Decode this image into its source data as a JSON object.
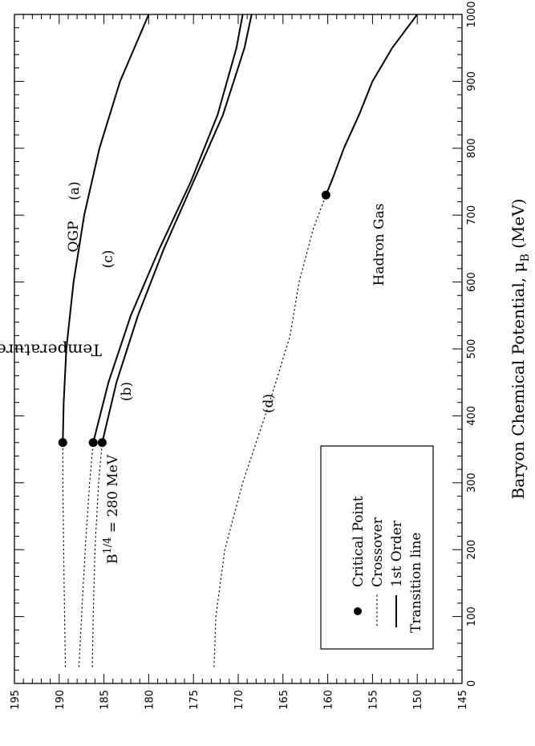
{
  "chart_data": {
    "type": "line",
    "xlabel": "Baryon Chemical Potential, μ",
    "xlabel_sub": "B",
    "xlabel_suffix": " (MeV)",
    "ylabel": "Temperature, T (MeV)",
    "xlim": [
      0,
      1000
    ],
    "ylim": [
      145,
      195
    ],
    "x_ticks": [
      0,
      100,
      200,
      300,
      400,
      500,
      600,
      700,
      800,
      900,
      1000
    ],
    "y_ticks": [
      145,
      150,
      155,
      160,
      165,
      170,
      175,
      180,
      185,
      190,
      195
    ],
    "orientation": "rotated 90° clockwise",
    "series": [
      {
        "id": "a",
        "label": "(a)",
        "color": "#000000",
        "crossover": [
          [
            25,
            189.3
          ],
          [
            100,
            189.4
          ],
          [
            200,
            189.5
          ],
          [
            300,
            189.6
          ],
          [
            360,
            189.6
          ]
        ],
        "first_order": [
          [
            360,
            189.6
          ],
          [
            420,
            189.5
          ],
          [
            500,
            189.2
          ],
          [
            600,
            188.4
          ],
          [
            700,
            187.2
          ],
          [
            800,
            185.5
          ],
          [
            900,
            183.2
          ],
          [
            1000,
            180.0
          ]
        ]
      },
      {
        "id": "b",
        "label": "(b)",
        "color": "#000000",
        "crossover": [
          [
            25,
            186.3
          ],
          [
            100,
            186.2
          ],
          [
            200,
            186.0
          ],
          [
            300,
            185.6
          ],
          [
            360,
            185.2
          ]
        ],
        "first_order": [
          [
            360,
            185.2
          ],
          [
            450,
            183.6
          ],
          [
            550,
            181.2
          ],
          [
            650,
            178.3
          ],
          [
            750,
            175.0
          ],
          [
            850,
            171.7
          ],
          [
            950,
            169.3
          ],
          [
            1000,
            168.5
          ]
        ]
      },
      {
        "id": "c",
        "label": "(c)",
        "color": "#000000",
        "crossover": [
          [
            25,
            187.8
          ],
          [
            100,
            187.5
          ],
          [
            200,
            187.1
          ],
          [
            300,
            186.6
          ],
          [
            360,
            186.2
          ]
        ],
        "first_order": [
          [
            360,
            186.2
          ],
          [
            450,
            184.5
          ],
          [
            550,
            182.0
          ],
          [
            650,
            178.8
          ],
          [
            750,
            175.3
          ],
          [
            850,
            172.3
          ],
          [
            950,
            170.2
          ],
          [
            1000,
            169.5
          ]
        ]
      },
      {
        "id": "d",
        "label": "(d)",
        "color": "#000000",
        "crossover": [
          [
            25,
            172.7
          ],
          [
            100,
            172.5
          ],
          [
            200,
            171.5
          ],
          [
            300,
            169.5
          ],
          [
            400,
            167.0
          ],
          [
            450,
            165.8
          ],
          [
            520,
            164.2
          ],
          [
            600,
            163.2
          ],
          [
            680,
            161.6
          ],
          [
            730,
            160.2
          ]
        ],
        "first_order": [
          [
            730,
            160.2
          ],
          [
            760,
            159.3
          ],
          [
            800,
            158.2
          ],
          [
            850,
            156.5
          ],
          [
            900,
            155.0
          ],
          [
            950,
            152.8
          ],
          [
            1000,
            150.0
          ]
        ]
      }
    ],
    "critical_points": [
      [
        360,
        189.6
      ],
      [
        360,
        186.2
      ],
      [
        360,
        185.2
      ],
      [
        730,
        160.2
      ]
    ],
    "annotations": {
      "qgp": "QGP",
      "hadron_gas": "Hadron Gas",
      "bag_constant_base": "B",
      "bag_constant_exp": "1/4",
      "bag_constant_rest": " = 280 MeV",
      "curve_a": "(a)",
      "curve_b": "(b)",
      "curve_c": "(c)",
      "curve_d": "(d)"
    },
    "legend": {
      "placement": "bottom-right",
      "items": [
        {
          "symbol": "dot",
          "label": "Critical Point"
        },
        {
          "symbol": "dotted-line",
          "label": "Crossover"
        },
        {
          "symbol": "solid-line",
          "label": "1st Order"
        },
        {
          "symbol": "none",
          "label": "Transition line"
        }
      ]
    }
  }
}
